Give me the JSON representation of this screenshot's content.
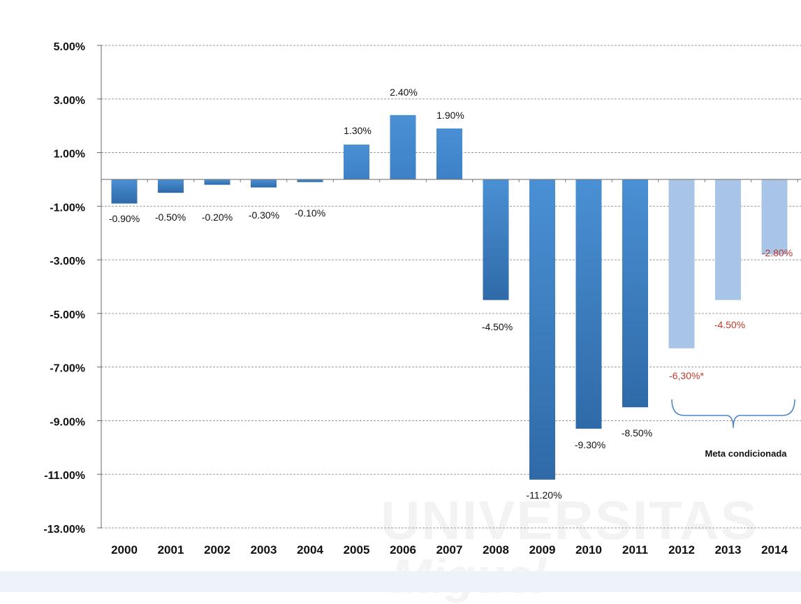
{
  "chart_data": {
    "type": "bar",
    "categories": [
      "2000",
      "2001",
      "2002",
      "2003",
      "2004",
      "2005",
      "2006",
      "2007",
      "2008",
      "2009",
      "2010",
      "2011",
      "2012",
      "2013",
      "2014"
    ],
    "values": [
      -0.9,
      -0.5,
      -0.2,
      -0.3,
      -0.1,
      1.3,
      2.4,
      1.9,
      -4.5,
      -11.2,
      -9.3,
      -8.5,
      -6.3,
      -4.5,
      -2.8
    ],
    "data_labels": [
      "-0.90%",
      "-0.50%",
      "-0.20%",
      "-0.30%",
      "-0.10%",
      "1.30%",
      "2.40%",
      "1.90%",
      "-4.50%",
      "-11.20%",
      "-9.30%",
      "-8.50%",
      "-6,30%*",
      "-4.50%",
      "-2.80%"
    ],
    "ylim": [
      -13,
      5
    ],
    "yticks": [
      5,
      3,
      1,
      -1,
      -3,
      -5,
      -7,
      -9,
      -11,
      -13
    ],
    "ytick_labels": [
      "5.00%",
      "3.00%",
      "1.00%",
      "-1.00%",
      "-3.00%",
      "-5.00%",
      "-7.00%",
      "-9.00%",
      "-11.00%",
      "-13.00%"
    ],
    "grid": true,
    "annotation": {
      "text": "Meta condicionada",
      "spans": [
        "2012",
        "2014"
      ]
    },
    "colors": {
      "actual_top": "#4a90d4",
      "actual_bottom": "#2f6aa8",
      "target_fill": "#a8c4e6",
      "target_label": "#c0392b",
      "grid": "#9a9a9a",
      "brace": "#4a86c5"
    },
    "highlight_from_index": 12
  },
  "watermark": {
    "line1": "UNIVERSITAS",
    "line2": "Miguel"
  }
}
